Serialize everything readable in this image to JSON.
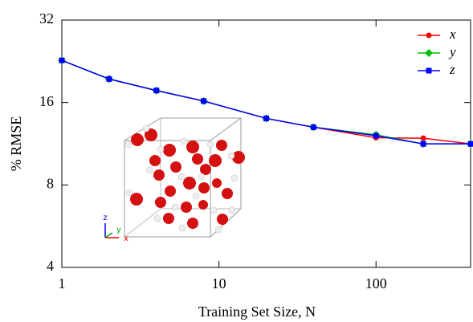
{
  "chart_data": {
    "type": "line",
    "xlabel": "Training Set Size, N",
    "ylabel": "% RMSE",
    "x": [
      1,
      2,
      4,
      8,
      20,
      40,
      100,
      200,
      400
    ],
    "series": [
      {
        "name": "x",
        "color": "#ff0000",
        "marker": "circle",
        "values": [
          22.8,
          19.5,
          17.7,
          16.2,
          14.0,
          13.0,
          11.9,
          11.85,
          11.3
        ]
      },
      {
        "name": "y",
        "color": "#00c000",
        "marker": "diamond",
        "values": [
          22.8,
          19.5,
          17.7,
          16.2,
          14.0,
          13.0,
          12.2,
          11.3,
          11.3
        ]
      },
      {
        "name": "z",
        "color": "#0000ff",
        "marker": "square",
        "values": [
          22.8,
          19.5,
          17.7,
          16.2,
          14.0,
          13.0,
          12.1,
          11.3,
          11.3
        ]
      }
    ],
    "xlim": [
      1,
      400
    ],
    "ylim": [
      4,
      32
    ],
    "xticks": [
      1,
      10,
      100
    ],
    "yticks": [
      4,
      8,
      16,
      32
    ],
    "xscale": "log",
    "yscale": "log",
    "legend": "upper right",
    "inset_axes_labels": [
      "x",
      "y",
      "z"
    ]
  }
}
